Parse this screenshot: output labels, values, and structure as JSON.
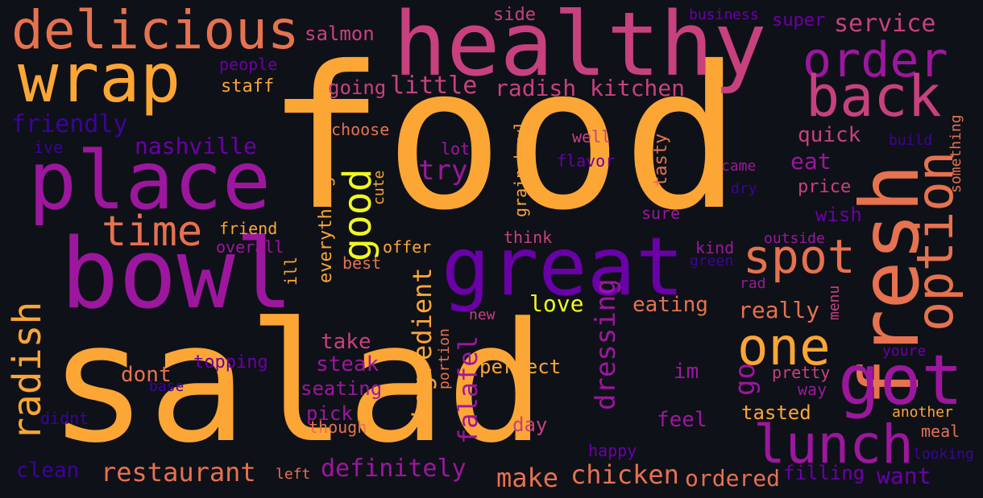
{
  "palette": {
    "background": "#0f1118",
    "orange": "#fca636",
    "salmon": "#e6724f",
    "pink": "#c7417f",
    "purple": "#9c179e",
    "violet": "#6a00a8",
    "indigo": "#3b049a",
    "yellow": "#f0f921"
  },
  "words": [
    {
      "text": "food",
      "color": "orange"
    },
    {
      "text": "salad",
      "color": "orange"
    },
    {
      "text": "healthy",
      "color": "pink"
    },
    {
      "text": "bowl",
      "color": "purple"
    },
    {
      "text": "place",
      "color": "purple"
    },
    {
      "text": "great",
      "color": "violet"
    },
    {
      "text": "wrap",
      "color": "orange"
    },
    {
      "text": "delicious",
      "color": "salmon"
    },
    {
      "text": "fresh",
      "color": "salmon"
    },
    {
      "text": "order",
      "color": "purple"
    },
    {
      "text": "back",
      "color": "pink"
    },
    {
      "text": "option",
      "color": "salmon"
    },
    {
      "text": "got",
      "color": "purple"
    },
    {
      "text": "lunch",
      "color": "purple"
    },
    {
      "text": "one",
      "color": "orange"
    },
    {
      "text": "spot",
      "color": "salmon"
    },
    {
      "text": "time",
      "color": "salmon"
    },
    {
      "text": "radish",
      "color": "orange"
    },
    {
      "text": "good",
      "color": "yellow"
    },
    {
      "text": "service",
      "color": "pink"
    },
    {
      "text": "salmon",
      "color": "pink"
    },
    {
      "text": "side",
      "color": "pink"
    },
    {
      "text": "business",
      "color": "violet"
    },
    {
      "text": "super",
      "color": "violet"
    },
    {
      "text": "people",
      "color": "violet"
    },
    {
      "text": "staff",
      "color": "orange"
    },
    {
      "text": "going",
      "color": "pink"
    },
    {
      "text": "little",
      "color": "pink"
    },
    {
      "text": "radish kitchen",
      "color": "pink"
    },
    {
      "text": "friendly",
      "color": "indigo"
    },
    {
      "text": "choose",
      "color": "salmon"
    },
    {
      "text": "nashville",
      "color": "violet"
    },
    {
      "text": "ive",
      "color": "indigo"
    },
    {
      "text": "quick",
      "color": "pink"
    },
    {
      "text": "well",
      "color": "pink"
    },
    {
      "text": "tasty",
      "color": "salmon"
    },
    {
      "text": "build",
      "color": "indigo"
    },
    {
      "text": "something",
      "color": "salmon"
    },
    {
      "text": "lot",
      "color": "purple"
    },
    {
      "text": "grain bowl",
      "color": "orange"
    },
    {
      "text": "flavor",
      "color": "violet"
    },
    {
      "text": "came",
      "color": "purple"
    },
    {
      "text": "eat",
      "color": "purple"
    },
    {
      "text": "try",
      "color": "purple"
    },
    {
      "text": "cute",
      "color": "orange"
    },
    {
      "text": "dry",
      "color": "indigo"
    },
    {
      "text": "price",
      "color": "pink"
    },
    {
      "text": "everything",
      "color": "orange"
    },
    {
      "text": "sure",
      "color": "purple"
    },
    {
      "text": "wish",
      "color": "violet"
    },
    {
      "text": "friend",
      "color": "orange"
    },
    {
      "text": "overall",
      "color": "purple"
    },
    {
      "text": "offer",
      "color": "orange"
    },
    {
      "text": "think",
      "color": "pink"
    },
    {
      "text": "kind",
      "color": "purple"
    },
    {
      "text": "outside",
      "color": "purple"
    },
    {
      "text": "green",
      "color": "indigo"
    },
    {
      "text": "best",
      "color": "salmon"
    },
    {
      "text": "ill",
      "color": "orange"
    },
    {
      "text": "ingredient",
      "color": "orange"
    },
    {
      "text": "rad",
      "color": "purple"
    },
    {
      "text": "menu",
      "color": "pink"
    },
    {
      "text": "love",
      "color": "yellow"
    },
    {
      "text": "eating",
      "color": "salmon"
    },
    {
      "text": "really",
      "color": "salmon"
    },
    {
      "text": "new",
      "color": "pink"
    },
    {
      "text": "portion",
      "color": "salmon"
    },
    {
      "text": "dressing",
      "color": "purple"
    },
    {
      "text": "take",
      "color": "pink"
    },
    {
      "text": "steak",
      "color": "purple"
    },
    {
      "text": "falafel",
      "color": "purple"
    },
    {
      "text": "go",
      "color": "purple"
    },
    {
      "text": "dont",
      "color": "salmon"
    },
    {
      "text": "topping",
      "color": "violet"
    },
    {
      "text": "perfect",
      "color": "orange"
    },
    {
      "text": "im",
      "color": "purple"
    },
    {
      "text": "pretty",
      "color": "pink"
    },
    {
      "text": "youre",
      "color": "violet"
    },
    {
      "text": "base",
      "color": "indigo"
    },
    {
      "text": "seating",
      "color": "purple"
    },
    {
      "text": "way",
      "color": "purple"
    },
    {
      "text": "didnt",
      "color": "indigo"
    },
    {
      "text": "pick",
      "color": "purple"
    },
    {
      "text": "though",
      "color": "salmon"
    },
    {
      "text": "day",
      "color": "pink"
    },
    {
      "text": "feel",
      "color": "purple"
    },
    {
      "text": "tasted",
      "color": "orange"
    },
    {
      "text": "another",
      "color": "orange"
    },
    {
      "text": "meal",
      "color": "salmon"
    },
    {
      "text": "happy",
      "color": "violet"
    },
    {
      "text": "looking",
      "color": "indigo"
    },
    {
      "text": "clean",
      "color": "indigo"
    },
    {
      "text": "restaurant",
      "color": "salmon"
    },
    {
      "text": "left",
      "color": "salmon"
    },
    {
      "text": "definitely",
      "color": "purple"
    },
    {
      "text": "make",
      "color": "salmon"
    },
    {
      "text": "chicken",
      "color": "salmon"
    },
    {
      "text": "ordered",
      "color": "salmon"
    },
    {
      "text": "filling",
      "color": "violet"
    },
    {
      "text": "want",
      "color": "violet"
    }
  ]
}
